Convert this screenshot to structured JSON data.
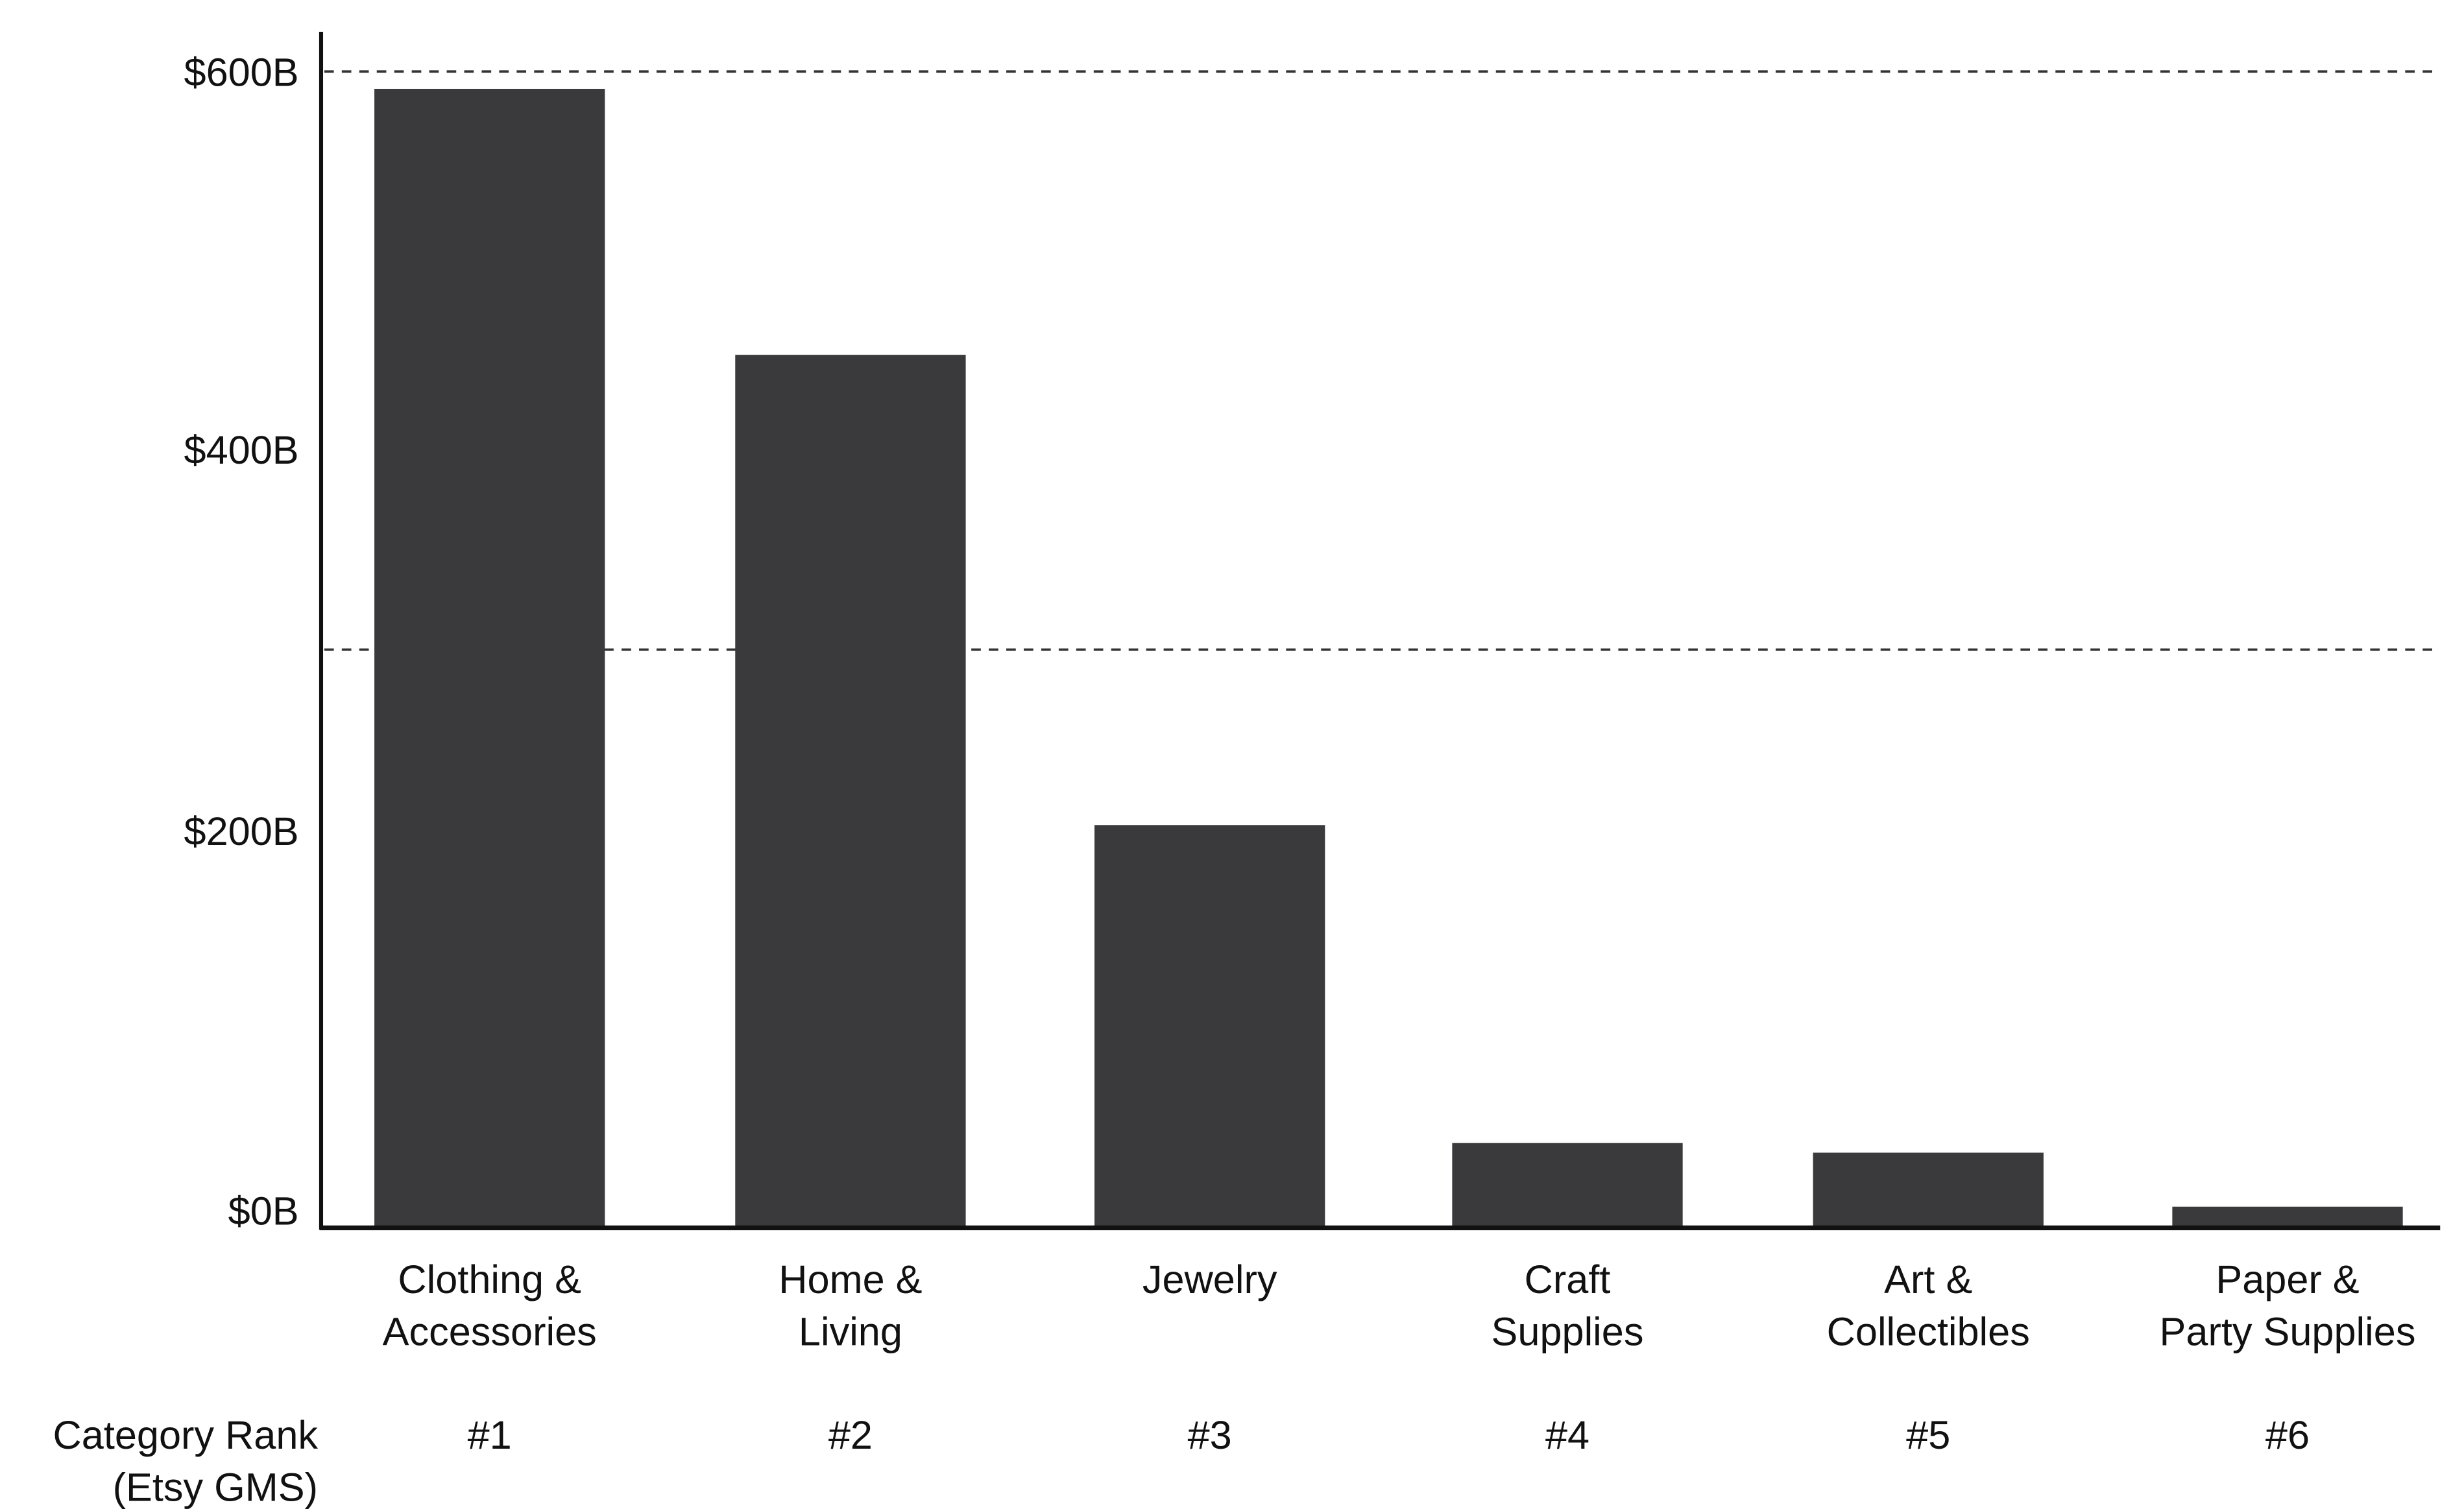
{
  "chart_data": {
    "type": "bar",
    "title": "",
    "xlabel": "",
    "ylabel": "",
    "ylim": [
      0,
      600
    ],
    "y_ticks": [
      {
        "value": 0,
        "label": "$0B"
      },
      {
        "value": 200,
        "label": "$200B"
      },
      {
        "value": 400,
        "label": "$400B"
      },
      {
        "value": 600,
        "label": "$600B"
      }
    ],
    "gridlines": [
      {
        "value": 600,
        "style": "dashed"
      },
      {
        "value": 300,
        "style": "dashed"
      }
    ],
    "categories": [
      [
        "Clothing &",
        "Accessories"
      ],
      [
        "Home &",
        "Living"
      ],
      [
        "Jewelry"
      ],
      [
        "Craft",
        "Supplies"
      ],
      [
        "Art &",
        "Collectibles"
      ],
      [
        "Paper &",
        "Party Supplies"
      ]
    ],
    "values": [
      591,
      453,
      209,
      44,
      39,
      11
    ],
    "rank_row_label": [
      "Category Rank",
      "(Etsy GMS)"
    ],
    "ranks": [
      "#1",
      "#2",
      "#3",
      "#4",
      "#5",
      "#6"
    ],
    "colors": {
      "bar": "#3a3a3c",
      "axis": "#111111",
      "grid": "#333333"
    }
  }
}
